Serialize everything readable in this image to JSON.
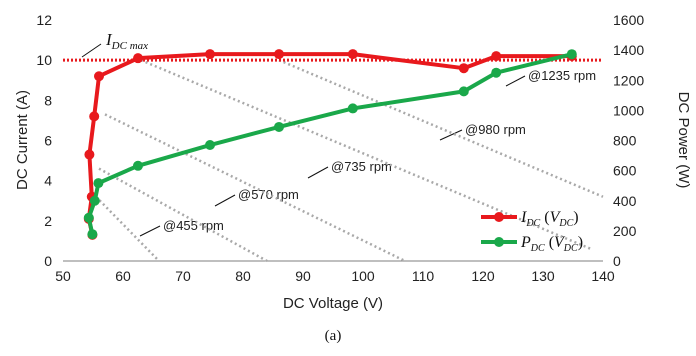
{
  "caption": "(a)",
  "chart_data": {
    "type": "line",
    "xlabel": "DC Voltage (V)",
    "ylabel": "DC Current (A)",
    "y2label": "DC Power (W)",
    "xlim": [
      50,
      140
    ],
    "ylim": [
      0,
      12
    ],
    "y2lim": [
      0,
      1600
    ],
    "xticks": [
      "50",
      "60",
      "70",
      "80",
      "90",
      "100",
      "110",
      "120",
      "130",
      "140"
    ],
    "yticks": [
      "0",
      "2",
      "4",
      "6",
      "8",
      "10",
      "12"
    ],
    "y2ticks": [
      "0",
      "200",
      "400",
      "600",
      "800",
      "1000",
      "1200",
      "1400",
      "1600"
    ],
    "grid": false,
    "legend_position": "bottom-right",
    "series": [
      {
        "name": "I_DC(V_DC)",
        "name_main": "I",
        "name_sub": "DC",
        "name_arg_main": "V",
        "name_arg_sub": "DC",
        "axis": "left",
        "color": "#e8191d",
        "points": [
          [
            54.9,
            1.3
          ],
          [
            54.3,
            2.1
          ],
          [
            54.8,
            3.2
          ],
          [
            54.4,
            5.3
          ],
          [
            55.2,
            7.2
          ],
          [
            56.0,
            9.2
          ],
          [
            62.5,
            10.1
          ],
          [
            74.5,
            10.3
          ],
          [
            86.0,
            10.3
          ],
          [
            98.3,
            10.3
          ],
          [
            116.8,
            9.6
          ],
          [
            122.2,
            10.2
          ],
          [
            134.8,
            10.2
          ]
        ]
      },
      {
        "name": "P_DC(V_DC)",
        "name_main": "P",
        "name_sub": "DC",
        "name_arg_main": "V",
        "name_arg_sub": "DC",
        "axis": "right",
        "color": "#1aa84a",
        "points": [
          [
            54.9,
            178
          ],
          [
            54.3,
            287
          ],
          [
            55.3,
            400
          ],
          [
            55.9,
            517
          ],
          [
            62.5,
            632
          ],
          [
            74.5,
            770
          ],
          [
            86.0,
            890
          ],
          [
            98.3,
            1013
          ],
          [
            116.8,
            1126
          ],
          [
            122.2,
            1250
          ],
          [
            134.8,
            1373
          ]
        ]
      }
    ],
    "reference_line": {
      "label_main": "I",
      "label_sub": "DC max",
      "value": 10,
      "color": "#e8191d"
    },
    "speed_lines": [
      {
        "label": "@455 rpm",
        "from": [
          55.5,
          3.2
        ],
        "to": [
          66.0,
          0
        ]
      },
      {
        "label": "@570 rpm",
        "from": [
          56.0,
          4.6
        ],
        "to": [
          84.0,
          0
        ]
      },
      {
        "label": "@735 rpm",
        "from": [
          57.0,
          7.3
        ],
        "to": [
          107.0,
          0
        ]
      },
      {
        "label": "@980 rpm",
        "from": [
          63.0,
          10.0
        ],
        "to": [
          138.0,
          0.6
        ]
      },
      {
        "label": "@1235 rpm",
        "from": [
          86.0,
          10.0
        ],
        "to": [
          140.0,
          3.2
        ]
      }
    ],
    "speed_line_color": "#a9a9a9"
  }
}
